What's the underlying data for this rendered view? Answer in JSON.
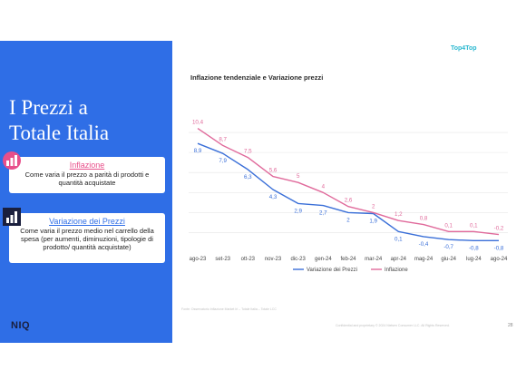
{
  "panel": {
    "title": "I Prezzi a\nTotale Italia",
    "cards": [
      {
        "title": "Inflazione",
        "body": "Come varia il prezzo a parità di prodotti e quantità acquistate",
        "title_color": "#e84f8a"
      },
      {
        "title": "Variazione dei Prezzi",
        "body": "Come varia il prezzo medio nel carrello della spesa (per aumenti, diminuzioni, tipologie di prodotto/ quantità acquistate)",
        "title_color": "#2f6ee6"
      }
    ],
    "logo": "NIQ"
  },
  "brand": "Top4Top",
  "footnote": "Fonte: Osservatorio Inflazione Market Iri – Totale Italia – Totale LCC",
  "footer_right": "Confidential and proprietary     © 2024 Nielsen Consumer LLC. All Rights Reserved.",
  "page_number": "28",
  "colors": {
    "panel_blue": "#2f6ee6",
    "series_blue": "#3a6fd8",
    "series_pink": "#e06a9b"
  },
  "chart_data": {
    "type": "line",
    "title": "Inflazione tendenziale e Variazione prezzi",
    "categories": [
      "ago-23",
      "set-23",
      "ott-23",
      "nov-23",
      "dic-23",
      "gen-24",
      "feb-24",
      "mar-24",
      "apr-24",
      "mag-24",
      "giu-24",
      "lug-24",
      "ago-24"
    ],
    "series": [
      {
        "name": "Variazione dei Prezzi",
        "color": "#3a6fd8",
        "values": [
          8.9,
          7.9,
          6.3,
          4.3,
          2.9,
          2.7,
          2,
          1.9,
          0.1,
          -0.4,
          -0.7,
          -0.8,
          -0.8
        ],
        "labels": [
          "8,9",
          "7,9",
          "6,3",
          "4,3",
          "2,9",
          "2,7",
          "2",
          "1,9",
          "0,1",
          "-0,4",
          "-0,7",
          "-0,8",
          "-0,8"
        ]
      },
      {
        "name": "Inflazione",
        "color": "#e06a9b",
        "values": [
          10.4,
          8.7,
          7.5,
          5.6,
          5,
          4,
          2.6,
          2,
          1.2,
          0.8,
          0.1,
          0.1,
          -0.2
        ],
        "labels": [
          "10,4",
          "8,7",
          "7,5",
          "5,6",
          "5",
          "4",
          "2,6",
          "2",
          "1,2",
          "0,8",
          "0,1",
          "0,1",
          "-0,2"
        ]
      }
    ],
    "ylim": [
      -1.5,
      11
    ],
    "grid": true,
    "legend": "bottom"
  }
}
